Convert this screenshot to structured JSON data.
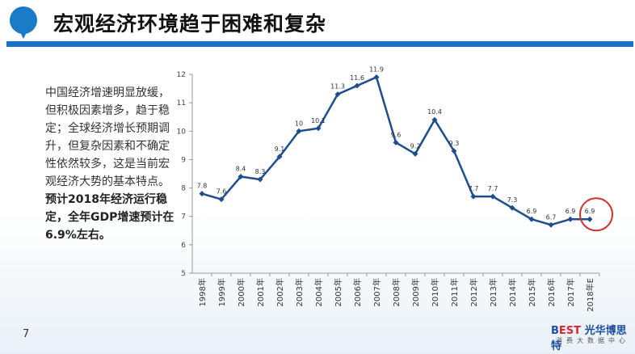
{
  "header": {
    "title": "宏观经济环境趋于困难和复杂",
    "logo_icon": "pin-logo-icon"
  },
  "body_text": {
    "paragraph": "中国经济增速明显放缓，但积极因素增多，趋于稳定；全球经济增长预期调升，但复杂因素和不确定性依然较多，这是当前宏观经济大势的基本特点。",
    "highlight": "预计2018年经济运行稳定，全年GDP增速预计在6.9%左右。"
  },
  "footer": {
    "page": "7",
    "brand_prefix": "B",
    "brand_est": "EST",
    "brand_name": "光华博思特",
    "brand_sub": "消费大数据中心"
  },
  "chart_data": {
    "type": "line",
    "categories": [
      "1998年",
      "1999年",
      "2000年",
      "2001年",
      "2002年",
      "2003年",
      "2004年",
      "2005年",
      "2006年",
      "2007年",
      "2008年",
      "2009年",
      "2010年",
      "2011年",
      "2012年",
      "2013年",
      "2014年",
      "2015年",
      "2016年",
      "2017年",
      "2018年E"
    ],
    "values": [
      7.8,
      7.6,
      8.4,
      8.3,
      9.1,
      10,
      10.1,
      11.3,
      11.6,
      11.9,
      9.6,
      9.2,
      10.4,
      9.3,
      7.7,
      7.7,
      7.3,
      6.9,
      6.7,
      6.9,
      6.9
    ],
    "labels": [
      "7.8",
      "7.6",
      "8.4",
      "8.3",
      "9.1",
      "10",
      "10.1",
      "11.3",
      "11.6",
      "11.9",
      "9.6",
      "9.2",
      "10.4",
      "9.3",
      "7.7",
      "7.7",
      "7.3",
      "6.9",
      "6.7",
      "6.9",
      "6.9"
    ],
    "ylim": [
      5,
      12
    ],
    "yticks": [
      "5",
      "6",
      "7",
      "8",
      "9",
      "10",
      "11",
      "12"
    ],
    "grid": false,
    "line_color": "#1f4e8c",
    "highlight_circle_color": "#d32f2f",
    "highlight_index": 20
  }
}
